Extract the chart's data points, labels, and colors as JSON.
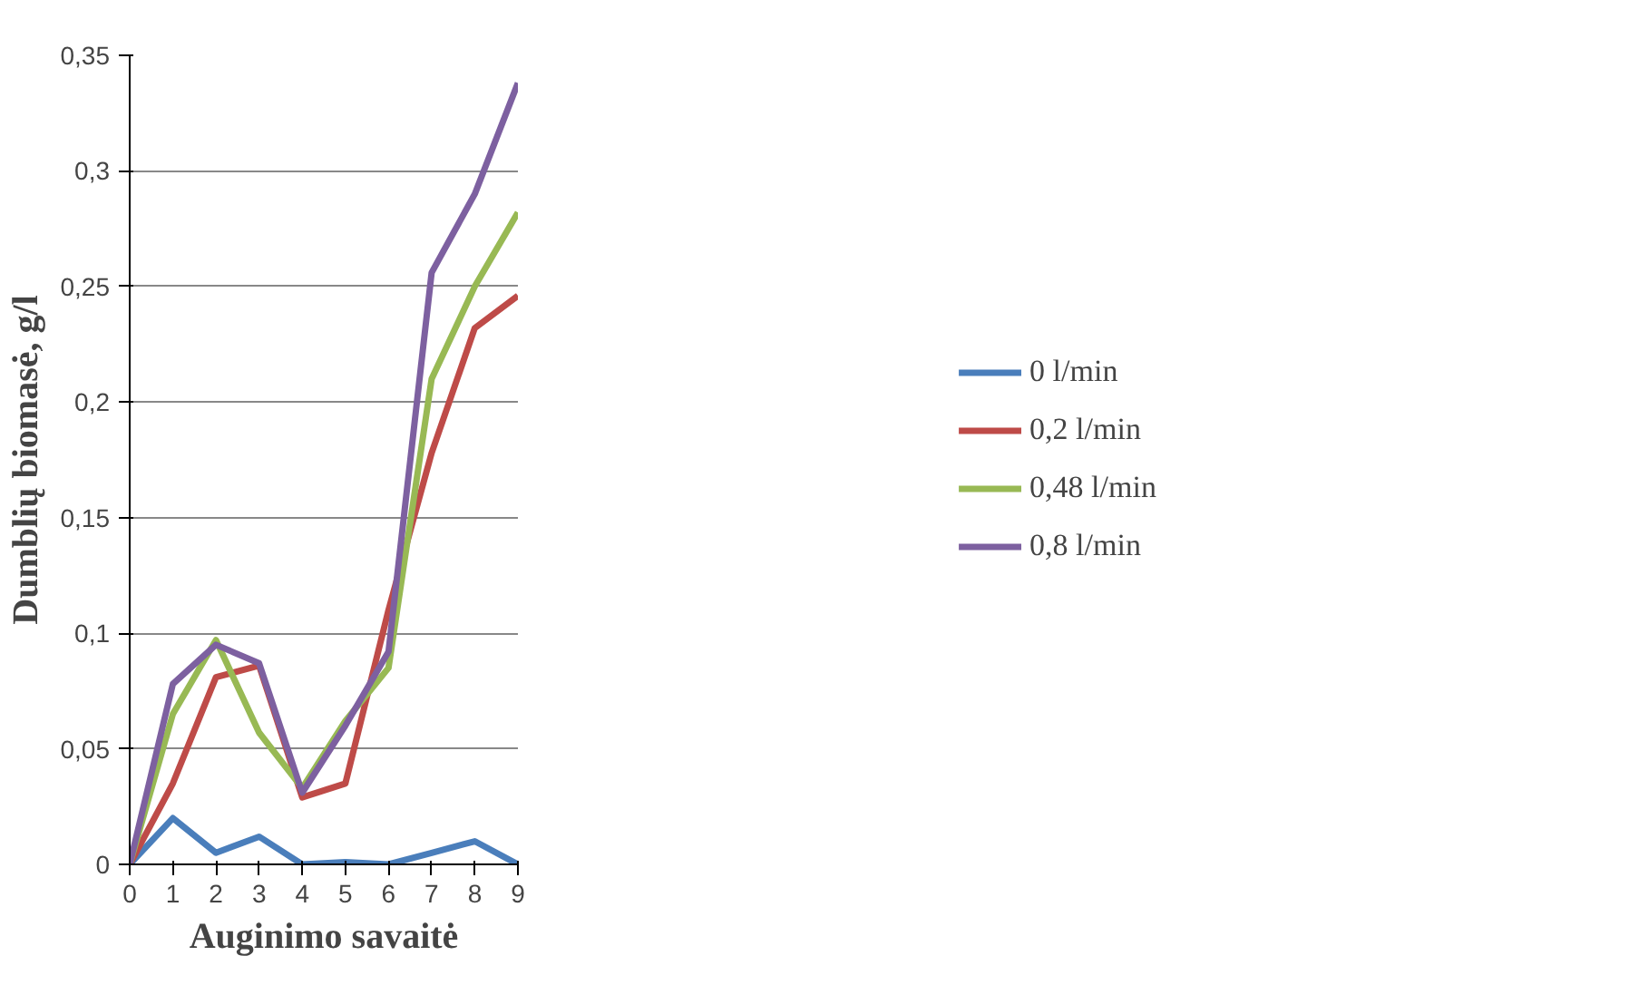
{
  "chart_data": {
    "type": "line",
    "xlabel": "Auginimo savaitė",
    "ylabel": "Dumblių biomasė, g/l",
    "x": [
      0,
      1,
      2,
      3,
      4,
      5,
      6,
      7,
      8,
      9
    ],
    "series": [
      {
        "name": "0 l/min",
        "color": "#4a7ebb",
        "values": [
          0,
          0.02,
          0.005,
          0.012,
          0,
          0.001,
          0,
          0.005,
          0.01,
          0
        ]
      },
      {
        "name": "0,2 l/min",
        "color": "#be4b48",
        "values": [
          0,
          0.035,
          0.081,
          0.086,
          0.029,
          0.035,
          0.11,
          0.178,
          0.232,
          0.246
        ]
      },
      {
        "name": "0,48 l/min",
        "color": "#98b954",
        "values": [
          0,
          0.065,
          0.097,
          0.057,
          0.033,
          0.062,
          0.085,
          0.21,
          0.25,
          0.282
        ]
      },
      {
        "name": "0,8 l/min",
        "color": "#7d60a0",
        "values": [
          0,
          0.078,
          0.095,
          0.087,
          0.031,
          0.06,
          0.092,
          0.256,
          0.29,
          0.338
        ]
      }
    ],
    "xlim": [
      0,
      9
    ],
    "xticks": [
      0,
      1,
      2,
      3,
      4,
      5,
      6,
      7,
      8,
      9
    ],
    "ylim": [
      0,
      0.35
    ],
    "yticks": [
      0,
      {
        "value": 0.05,
        "label": "0,05"
      },
      {
        "value": 0.1,
        "label": "0,1"
      },
      {
        "value": 0.15,
        "label": "0,15"
      },
      {
        "value": 0.2,
        "label": "0,2"
      },
      {
        "value": 0.25,
        "label": "0,25"
      },
      {
        "value": 0.3,
        "label": "0,3"
      },
      {
        "value": 0.35,
        "label": "0,35"
      }
    ],
    "grid": "y",
    "legend": "right",
    "marker": "none",
    "line_style": "solid"
  }
}
